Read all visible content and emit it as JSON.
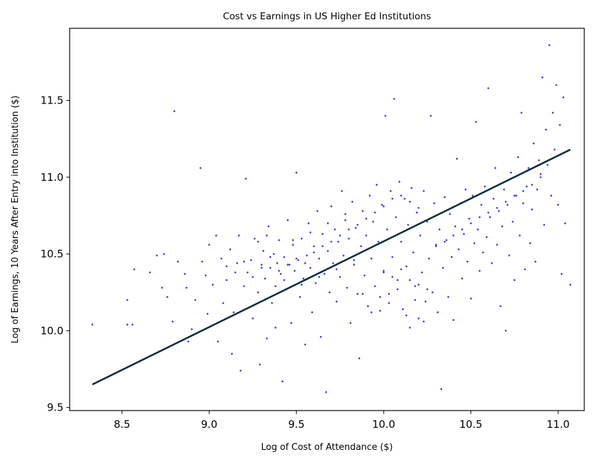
{
  "chart_data": {
    "type": "scatter",
    "title": "Cost vs Earnings in US Higher Ed Institutions",
    "xlabel": "Log of Cost of Attendance ($)",
    "ylabel": "Log of Earnings, 10 Years After Entry into Institution ($)",
    "xlim": [
      8.2,
      11.15
    ],
    "ylim": [
      9.48,
      11.97
    ],
    "xticks": [
      "8.5",
      "9.0",
      "9.5",
      "10.0",
      "10.5",
      "11.0"
    ],
    "yticks": [
      "9.5",
      "10.0",
      "10.5",
      "11.0",
      "11.5"
    ],
    "grid": false,
    "legend": "none",
    "point_color": "#3a3fd9",
    "line_color": "#0f2d3a",
    "fit_line": {
      "x": [
        8.33,
        11.07
      ],
      "y": [
        9.65,
        11.18
      ]
    },
    "series": [
      {
        "points": [
          [
            8.33,
            10.04
          ],
          [
            8.53,
            10.04
          ],
          [
            8.56,
            10.04
          ],
          [
            8.53,
            10.2
          ],
          [
            8.57,
            10.4
          ],
          [
            8.66,
            10.38
          ],
          [
            8.7,
            10.49
          ],
          [
            8.74,
            10.5
          ],
          [
            8.73,
            10.28
          ],
          [
            8.76,
            10.22
          ],
          [
            8.79,
            10.06
          ],
          [
            8.8,
            11.43
          ],
          [
            8.82,
            10.45
          ],
          [
            8.86,
            10.37
          ],
          [
            8.87,
            10.28
          ],
          [
            8.88,
            9.93
          ],
          [
            8.9,
            10.01
          ],
          [
            8.92,
            10.2
          ],
          [
            8.95,
            11.06
          ],
          [
            8.96,
            10.45
          ],
          [
            8.98,
            10.36
          ],
          [
            8.99,
            10.11
          ],
          [
            9.0,
            10.56
          ],
          [
            9.02,
            10.3
          ],
          [
            9.04,
            10.62
          ],
          [
            9.05,
            9.93
          ],
          [
            9.07,
            10.47
          ],
          [
            9.08,
            10.18
          ],
          [
            9.1,
            10.33
          ],
          [
            9.12,
            10.53
          ],
          [
            9.13,
            9.85
          ],
          [
            9.14,
            10.12
          ],
          [
            9.16,
            10.44
          ],
          [
            9.17,
            10.62
          ],
          [
            9.18,
            9.74
          ],
          [
            9.2,
            10.29
          ],
          [
            9.21,
            10.99
          ],
          [
            9.22,
            10.38
          ],
          [
            9.24,
            10.46
          ],
          [
            9.25,
            10.08
          ],
          [
            9.26,
            10.6
          ],
          [
            9.28,
            10.25
          ],
          [
            9.29,
            9.78
          ],
          [
            9.3,
            10.43
          ],
          [
            9.31,
            10.52
          ],
          [
            9.32,
            10.34
          ],
          [
            9.33,
            9.95
          ],
          [
            9.34,
            10.68
          ],
          [
            9.35,
            10.41
          ],
          [
            9.36,
            10.18
          ],
          [
            9.37,
            10.5
          ],
          [
            9.38,
            10.02
          ],
          [
            9.39,
            10.44
          ],
          [
            9.4,
            10.59
          ],
          [
            9.41,
            10.37
          ],
          [
            9.42,
            9.67
          ],
          [
            9.43,
            10.48
          ],
          [
            9.44,
            10.27
          ],
          [
            9.45,
            10.72
          ],
          [
            9.46,
            10.43
          ],
          [
            9.47,
            10.05
          ],
          [
            9.48,
            10.56
          ],
          [
            9.49,
            10.39
          ],
          [
            9.5,
            11.03
          ],
          [
            9.51,
            10.46
          ],
          [
            9.52,
            10.22
          ],
          [
            9.53,
            10.6
          ],
          [
            9.54,
            10.34
          ],
          [
            9.55,
            9.91
          ],
          [
            9.56,
            10.49
          ],
          [
            9.57,
            10.7
          ],
          [
            9.58,
            10.41
          ],
          [
            9.59,
            10.12
          ],
          [
            9.6,
            10.55
          ],
          [
            9.61,
            10.31
          ],
          [
            9.62,
            10.78
          ],
          [
            9.63,
            10.47
          ],
          [
            9.64,
            9.96
          ],
          [
            9.65,
            10.63
          ],
          [
            9.66,
            10.37
          ],
          [
            9.67,
            9.6
          ],
          [
            9.68,
            10.52
          ],
          [
            9.69,
            10.25
          ],
          [
            9.7,
            10.81
          ],
          [
            9.71,
            10.44
          ],
          [
            9.72,
            10.66
          ],
          [
            9.73,
            10.19
          ],
          [
            9.74,
            10.58
          ],
          [
            9.75,
            10.35
          ],
          [
            9.76,
            10.91
          ],
          [
            9.77,
            10.49
          ],
          [
            9.78,
            10.72
          ],
          [
            9.79,
            10.28
          ],
          [
            9.8,
            10.6
          ],
          [
            9.81,
            10.05
          ],
          [
            9.82,
            10.84
          ],
          [
            9.83,
            10.43
          ],
          [
            9.84,
            10.67
          ],
          [
            9.85,
            10.24
          ],
          [
            9.86,
            9.82
          ],
          [
            9.87,
            10.55
          ],
          [
            9.88,
            10.78
          ],
          [
            9.89,
            10.36
          ],
          [
            9.9,
            10.62
          ],
          [
            9.91,
            10.16
          ],
          [
            9.92,
            10.88
          ],
          [
            9.93,
            10.47
          ],
          [
            9.94,
            10.71
          ],
          [
            9.95,
            10.29
          ],
          [
            9.96,
            10.95
          ],
          [
            9.97,
            10.58
          ],
          [
            9.98,
            10.13
          ],
          [
            9.99,
            10.82
          ],
          [
            10.0,
            10.39
          ],
          [
            10.01,
            11.4
          ],
          [
            10.02,
            10.66
          ],
          [
            10.03,
            10.24
          ],
          [
            10.04,
            10.91
          ],
          [
            10.05,
            10.48
          ],
          [
            10.06,
            11.51
          ],
          [
            10.07,
            10.74
          ],
          [
            10.08,
            10.33
          ],
          [
            10.09,
            10.97
          ],
          [
            10.1,
            10.58
          ],
          [
            10.11,
            10.14
          ],
          [
            10.12,
            10.86
          ],
          [
            10.13,
            10.42
          ],
          [
            10.14,
            10.69
          ],
          [
            10.15,
            10.02
          ],
          [
            10.16,
            10.93
          ],
          [
            10.17,
            10.51
          ],
          [
            10.18,
            10.29
          ],
          [
            10.19,
            10.77
          ],
          [
            10.2,
            10.08
          ],
          [
            10.21,
            10.62
          ],
          [
            10.22,
            10.38
          ],
          [
            10.23,
            10.91
          ],
          [
            10.24,
            10.19
          ],
          [
            10.25,
            10.71
          ],
          [
            10.26,
            10.47
          ],
          [
            10.27,
            11.4
          ],
          [
            10.28,
            10.25
          ],
          [
            10.29,
            10.83
          ],
          [
            10.3,
            10.56
          ],
          [
            10.31,
            10.12
          ],
          [
            10.32,
            10.66
          ],
          [
            10.33,
            9.62
          ],
          [
            10.34,
            10.41
          ],
          [
            10.35,
            10.87
          ],
          [
            10.36,
            10.59
          ],
          [
            10.37,
            10.22
          ],
          [
            10.38,
            10.76
          ],
          [
            10.39,
            10.48
          ],
          [
            10.4,
            10.07
          ],
          [
            10.41,
            10.68
          ],
          [
            10.42,
            11.12
          ],
          [
            10.43,
            10.53
          ],
          [
            10.44,
            10.83
          ],
          [
            10.45,
            10.34
          ],
          [
            10.46,
            10.63
          ],
          [
            10.47,
            10.92
          ],
          [
            10.48,
            10.45
          ],
          [
            10.49,
            10.73
          ],
          [
            10.5,
            10.21
          ],
          [
            10.51,
            10.88
          ],
          [
            10.52,
            10.57
          ],
          [
            10.53,
            11.36
          ],
          [
            10.54,
            10.66
          ],
          [
            10.55,
            10.39
          ],
          [
            10.56,
            10.82
          ],
          [
            10.57,
            10.51
          ],
          [
            10.58,
            10.94
          ],
          [
            10.59,
            10.61
          ],
          [
            10.6,
            11.58
          ],
          [
            10.61,
            10.74
          ],
          [
            10.62,
            10.44
          ],
          [
            10.63,
            10.86
          ],
          [
            10.64,
            11.06
          ],
          [
            10.65,
            10.56
          ],
          [
            10.66,
            10.78
          ],
          [
            10.67,
            10.16
          ],
          [
            10.68,
            10.68
          ],
          [
            10.69,
            10.92
          ],
          [
            10.7,
            10.0
          ],
          [
            10.71,
            10.82
          ],
          [
            10.72,
            10.49
          ],
          [
            10.73,
            11.03
          ],
          [
            10.74,
            10.71
          ],
          [
            10.75,
            10.33
          ],
          [
            10.76,
            10.88
          ],
          [
            10.77,
            11.13
          ],
          [
            10.78,
            10.62
          ],
          [
            10.79,
            11.42
          ],
          [
            10.8,
            10.83
          ],
          [
            10.81,
            10.4
          ],
          [
            10.82,
            10.94
          ],
          [
            10.83,
            11.06
          ],
          [
            10.84,
            10.57
          ],
          [
            10.85,
            10.79
          ],
          [
            10.86,
            11.22
          ],
          [
            10.87,
            10.45
          ],
          [
            10.88,
            10.92
          ],
          [
            10.89,
            11.11
          ],
          [
            10.9,
            11.02
          ],
          [
            10.91,
            11.65
          ],
          [
            10.92,
            10.69
          ],
          [
            10.93,
            11.31
          ],
          [
            10.94,
            11.08
          ],
          [
            10.95,
            11.86
          ],
          [
            10.96,
            10.88
          ],
          [
            10.97,
            11.42
          ],
          [
            10.98,
            11.18
          ],
          [
            10.99,
            11.6
          ],
          [
            11.0,
            10.82
          ],
          [
            11.01,
            11.34
          ],
          [
            11.02,
            10.37
          ],
          [
            11.03,
            11.52
          ],
          [
            11.04,
            10.7
          ],
          [
            11.07,
            10.3
          ],
          [
            9.1,
            10.42
          ],
          [
            9.15,
            10.38
          ],
          [
            9.2,
            10.45
          ],
          [
            9.25,
            10.35
          ],
          [
            9.3,
            10.41
          ],
          [
            9.35,
            10.48
          ],
          [
            9.4,
            10.39
          ],
          [
            9.45,
            10.43
          ],
          [
            9.5,
            10.47
          ],
          [
            9.55,
            10.44
          ],
          [
            9.6,
            10.51
          ],
          [
            9.65,
            10.55
          ],
          [
            9.7,
            10.58
          ],
          [
            9.75,
            10.62
          ],
          [
            9.8,
            10.66
          ],
          [
            9.85,
            10.69
          ],
          [
            9.9,
            10.73
          ],
          [
            9.95,
            10.77
          ],
          [
            10.0,
            10.81
          ],
          [
            10.05,
            10.86
          ],
          [
            10.1,
            10.88
          ],
          [
            10.15,
            10.84
          ],
          [
            10.2,
            10.8
          ],
          [
            10.0,
            10.38
          ],
          [
            10.05,
            10.35
          ],
          [
            10.1,
            10.4
          ],
          [
            10.15,
            10.33
          ],
          [
            10.2,
            10.3
          ],
          [
            10.25,
            10.27
          ],
          [
            10.3,
            10.55
          ],
          [
            10.35,
            10.58
          ],
          [
            10.4,
            10.62
          ],
          [
            10.45,
            10.66
          ],
          [
            10.5,
            10.7
          ],
          [
            10.55,
            10.74
          ],
          [
            10.6,
            10.77
          ],
          [
            10.65,
            10.8
          ],
          [
            10.7,
            10.84
          ],
          [
            10.75,
            10.88
          ],
          [
            10.8,
            10.91
          ],
          [
            10.85,
            10.95
          ],
          [
            10.9,
            11.0
          ],
          [
            9.28,
            10.58
          ],
          [
            9.33,
            10.62
          ],
          [
            9.38,
            10.29
          ],
          [
            9.43,
            10.33
          ],
          [
            9.48,
            10.59
          ],
          [
            9.53,
            10.3
          ],
          [
            9.58,
            10.64
          ],
          [
            9.63,
            10.35
          ],
          [
            9.68,
            10.7
          ],
          [
            9.73,
            10.4
          ],
          [
            9.78,
            10.76
          ],
          [
            9.83,
            10.46
          ],
          [
            9.88,
            10.24
          ],
          [
            9.93,
            10.12
          ],
          [
            9.98,
            10.22
          ],
          [
            10.03,
            10.18
          ],
          [
            10.08,
            10.27
          ],
          [
            10.13,
            10.1
          ],
          [
            10.18,
            10.2
          ],
          [
            10.23,
            10.06
          ]
        ]
      }
    ]
  }
}
